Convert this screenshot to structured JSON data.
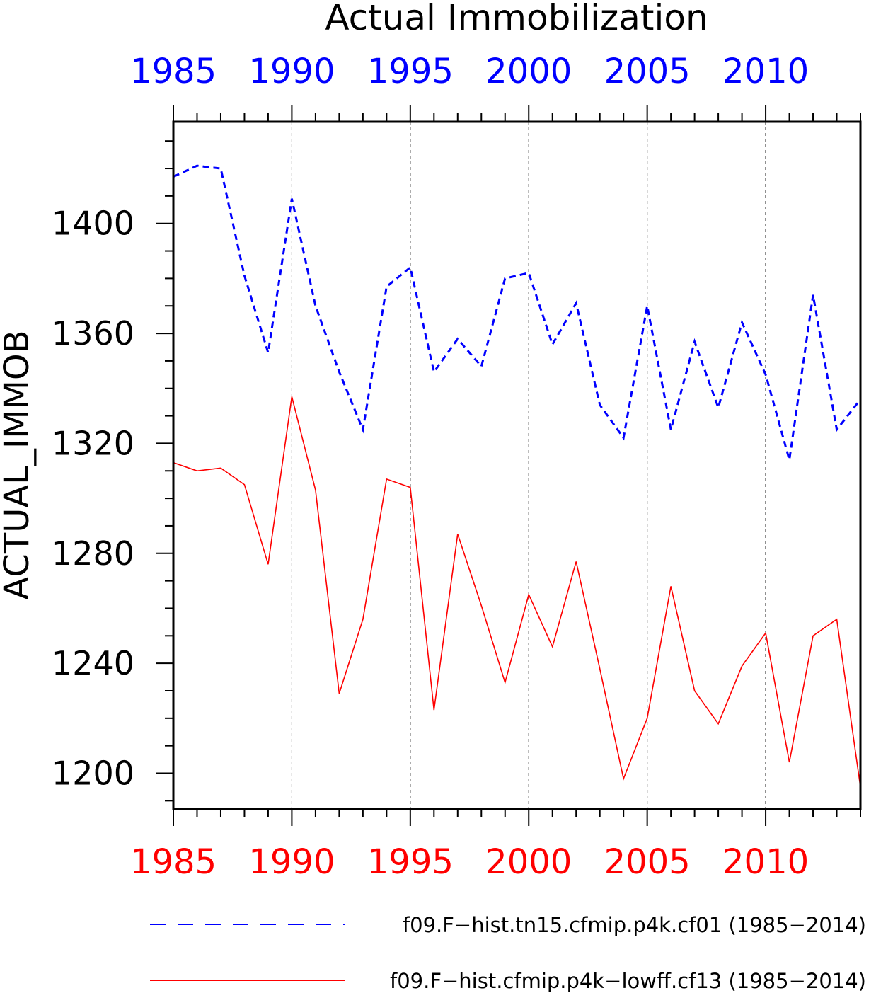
{
  "chart_data": {
    "type": "line",
    "title": "Actual Immobilization",
    "ylabel": "ACTUAL_IMMOB",
    "xlim": [
      1985,
      2014
    ],
    "ylim": [
      1187,
      1437
    ],
    "x_ticks": [
      1985,
      1990,
      1995,
      2000,
      2005,
      2010
    ],
    "x_tick_labels": [
      "1985",
      "1990",
      "1995",
      "2000",
      "2005",
      "2010"
    ],
    "y_ticks": [
      1200,
      1240,
      1280,
      1320,
      1360,
      1400
    ],
    "y_tick_labels": [
      "1200",
      "1240",
      "1280",
      "1320",
      "1360",
      "1400"
    ],
    "vertical_gridlines_at": [
      1990,
      1995,
      2000,
      2005,
      2010
    ],
    "top_axis_color": "#0000ff",
    "bottom_axis_color": "#ff0000",
    "series": [
      {
        "name": "f09.F−hist.tn15.cfmip.p4k.cf01 (1985−2014)",
        "color": "#0000ff",
        "style": "dashed",
        "x": [
          1985,
          1986,
          1987,
          1988,
          1989,
          1990,
          1991,
          1992,
          1993,
          1994,
          1995,
          1996,
          1997,
          1998,
          1999,
          2000,
          2001,
          2002,
          2003,
          2004,
          2005,
          2006,
          2007,
          2008,
          2009,
          2010,
          2011,
          2012,
          2013,
          2014
        ],
        "values": [
          1417,
          1421,
          1420,
          1381,
          1353,
          1409,
          1370,
          1346,
          1325,
          1377,
          1384,
          1346,
          1358,
          1348,
          1380,
          1382,
          1356,
          1371,
          1334,
          1322,
          1370,
          1325,
          1357,
          1333,
          1364,
          1345,
          1314,
          1374,
          1325,
          1336
        ]
      },
      {
        "name": "f09.F−hist.cfmip.p4k−lowff.cf13 (1985−2014)",
        "color": "#ff0000",
        "style": "solid",
        "x": [
          1985,
          1986,
          1987,
          1988,
          1989,
          1990,
          1991,
          1992,
          1993,
          1994,
          1995,
          1996,
          1997,
          1998,
          1999,
          2000,
          2001,
          2002,
          2003,
          2004,
          2005,
          2006,
          2007,
          2008,
          2009,
          2010,
          2011,
          2012,
          2013,
          2014
        ],
        "values": [
          1313,
          1310,
          1311,
          1305,
          1276,
          1337,
          1303,
          1229,
          1256,
          1307,
          1304,
          1223,
          1287,
          1261,
          1233,
          1265,
          1246,
          1277,
          1238,
          1198,
          1220,
          1268,
          1230,
          1218,
          1239,
          1251,
          1204,
          1250,
          1256,
          1195
        ]
      }
    ]
  }
}
